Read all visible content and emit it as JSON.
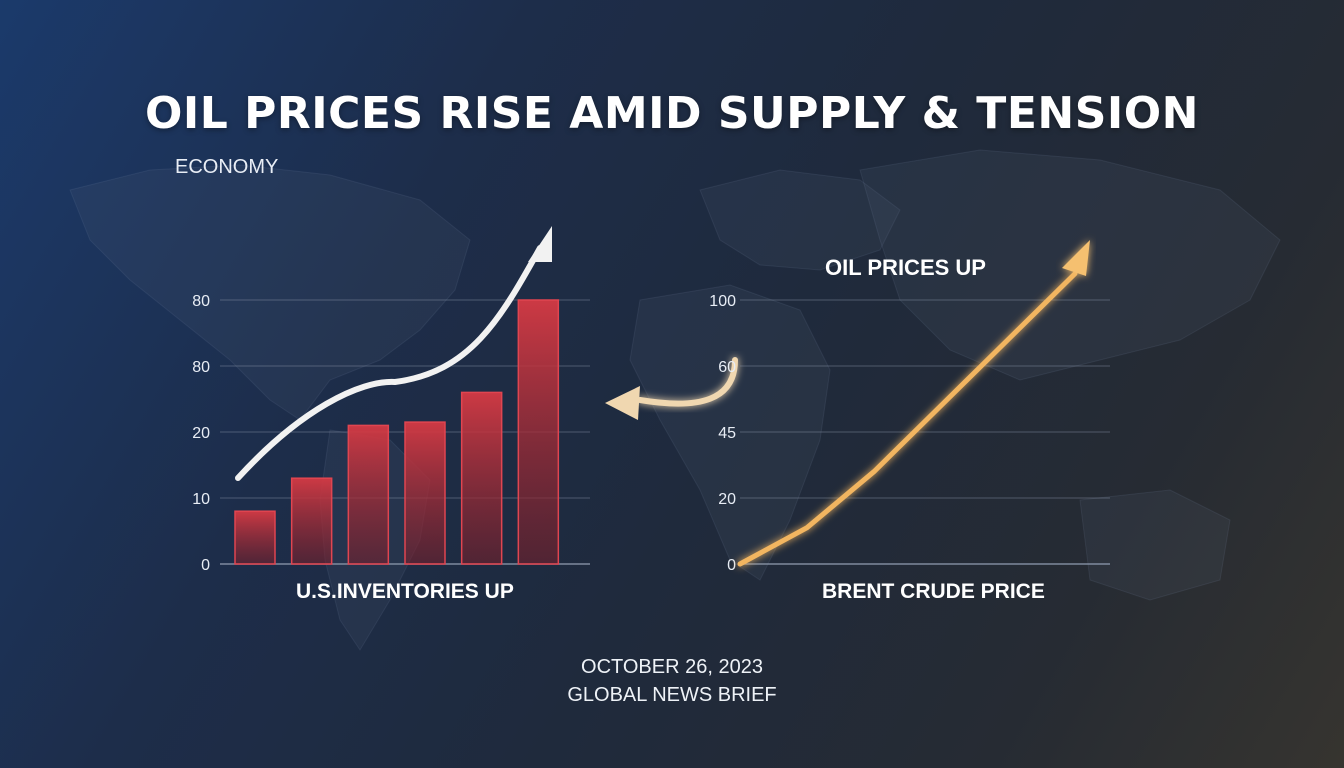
{
  "header": {
    "title": "OIL PRICES RISE AMID SUPPLY & TENSION",
    "category": "ECONOMY"
  },
  "footer": {
    "date": "OCTOBER 26, 2023",
    "source": "GLOBAL NEWS BRIEF"
  },
  "colors": {
    "bar": "#c8323b",
    "left_arrow": "#f2f2f2",
    "right_arrow": "#f2b560",
    "grid": "#8a95a8"
  },
  "chart_data": [
    {
      "type": "bar",
      "title": "",
      "xlabel": "U.S.INVENTORIES UP",
      "ylabel": "",
      "y_tick_labels": [
        "0",
        "10",
        "20",
        "80",
        "80"
      ],
      "categories": [
        "",
        "",
        "",
        "",
        "",
        ""
      ],
      "values": [
        0.8,
        1.3,
        2.1,
        2.15,
        2.6,
        4.0
      ],
      "value_scale_note_ticks_index": true,
      "ylim": [
        0,
        4
      ],
      "trend_arrow": true,
      "grid": true
    },
    {
      "type": "line",
      "title": "OIL PRICES UP",
      "xlabel": "BRENT CRUDE PRICE",
      "ylabel": "",
      "y_tick_labels": [
        "0",
        "20",
        "45",
        "60",
        "100"
      ],
      "ylim": [
        0,
        4
      ],
      "x": [
        0,
        1,
        2,
        3,
        4,
        5
      ],
      "series": [
        {
          "values": [
            0,
            0.55,
            1.4,
            2.4,
            3.4,
            4.4
          ]
        }
      ],
      "grid": true
    }
  ]
}
